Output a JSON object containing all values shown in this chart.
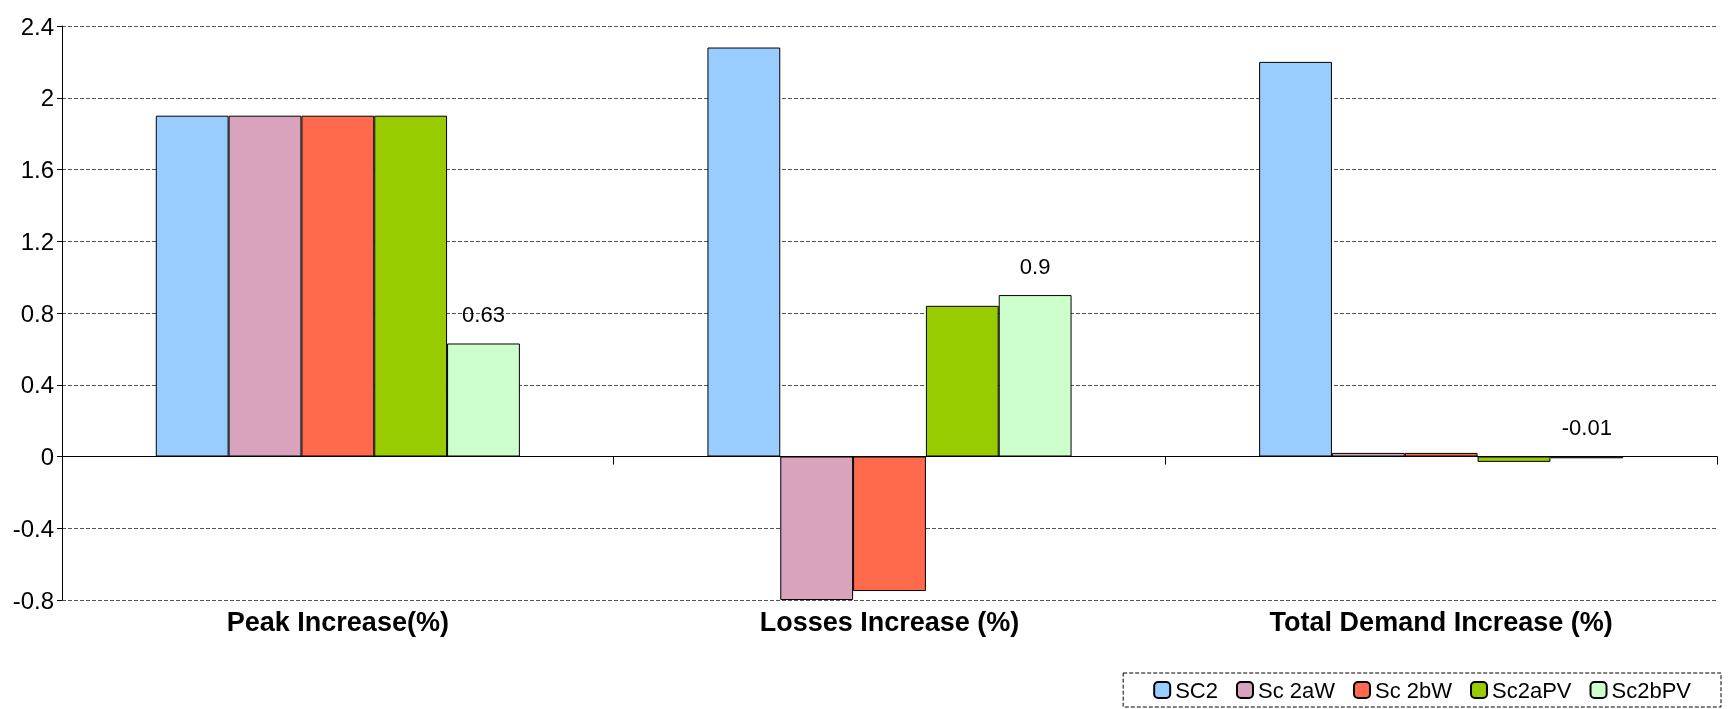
{
  "chart_data": {
    "type": "bar",
    "categories": [
      "Peak Increase(%)",
      "Losses Increase (%)",
      "Total Demand Increase (%)"
    ],
    "series": [
      {
        "name": "SC2",
        "color": "#99ccff",
        "values": [
          1.9,
          2.28,
          2.2
        ]
      },
      {
        "name": "Sc 2aW",
        "color": "#d9a3bd",
        "values": [
          1.9,
          -0.8,
          0.02
        ]
      },
      {
        "name": "Sc 2bW",
        "color": "#ff6a4d",
        "values": [
          1.9,
          -0.75,
          0.02
        ]
      },
      {
        "name": "Sc2aPV",
        "color": "#99cc00",
        "values": [
          1.9,
          0.84,
          -0.03
        ]
      },
      {
        "name": "Sc2bPV",
        "color": "#ccffcc",
        "values": [
          0.63,
          0.9,
          -0.01
        ],
        "value_labels": [
          "0.63",
          "0.9",
          "-0.01"
        ]
      }
    ],
    "ylim": [
      -0.8,
      2.4
    ],
    "yticks": [
      -0.8,
      -0.4,
      0,
      0.4,
      0.8,
      1.2,
      1.6,
      2,
      2.4
    ],
    "grid": "y",
    "legend": "bottom right"
  }
}
